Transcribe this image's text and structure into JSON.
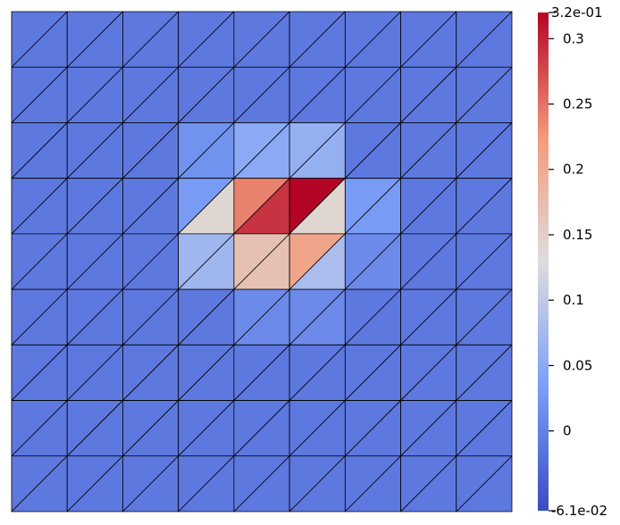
{
  "chart_data": {
    "type": "heatmap",
    "mesh": {
      "rows": 9,
      "cols": 9,
      "cell_split": "diagonal-bottom-left-to-top-right",
      "edge_color": "#000000",
      "triangles_note_order": "row index 0 = top, col index 0 = left; each cell has upper-left and lower-right triangle",
      "values": [
        [
          [
            -0.01,
            -0.01
          ],
          [
            -0.01,
            -0.01
          ],
          [
            -0.01,
            -0.01
          ],
          [
            -0.01,
            -0.01
          ],
          [
            -0.01,
            -0.01
          ],
          [
            -0.01,
            -0.01
          ],
          [
            -0.01,
            -0.01
          ],
          [
            -0.01,
            -0.01
          ],
          [
            -0.01,
            -0.01
          ]
        ],
        [
          [
            -0.01,
            -0.01
          ],
          [
            -0.01,
            -0.01
          ],
          [
            -0.01,
            -0.01
          ],
          [
            -0.01,
            -0.01
          ],
          [
            -0.01,
            -0.01
          ],
          [
            -0.01,
            -0.01
          ],
          [
            -0.01,
            -0.01
          ],
          [
            -0.01,
            -0.01
          ],
          [
            -0.01,
            -0.01
          ]
        ],
        [
          [
            -0.01,
            -0.01
          ],
          [
            -0.01,
            -0.01
          ],
          [
            -0.01,
            -0.01
          ],
          [
            0.02,
            0.02
          ],
          [
            0.05,
            0.05
          ],
          [
            0.06,
            0.06
          ],
          [
            -0.01,
            -0.01
          ],
          [
            -0.01,
            -0.01
          ],
          [
            -0.01,
            -0.01
          ]
        ],
        [
          [
            -0.01,
            -0.01
          ],
          [
            -0.01,
            -0.01
          ],
          [
            -0.01,
            -0.01
          ],
          [
            0.03,
            0.14
          ],
          [
            0.24,
            0.29
          ],
          [
            0.32,
            0.14
          ],
          [
            0.03,
            0.03
          ],
          [
            -0.01,
            -0.01
          ],
          [
            -0.01,
            -0.01
          ]
        ],
        [
          [
            -0.01,
            -0.01
          ],
          [
            -0.01,
            -0.01
          ],
          [
            -0.01,
            -0.01
          ],
          [
            0.07,
            0.07
          ],
          [
            0.17,
            0.17
          ],
          [
            0.21,
            0.08
          ],
          [
            0.01,
            0.01
          ],
          [
            -0.01,
            -0.01
          ],
          [
            -0.01,
            -0.01
          ]
        ],
        [
          [
            -0.01,
            -0.01
          ],
          [
            -0.01,
            -0.01
          ],
          [
            -0.01,
            -0.01
          ],
          [
            -0.01,
            -0.01
          ],
          [
            0.01,
            0.01
          ],
          [
            0.01,
            0.01
          ],
          [
            -0.01,
            -0.01
          ],
          [
            -0.01,
            -0.01
          ],
          [
            -0.01,
            -0.01
          ]
        ],
        [
          [
            -0.01,
            -0.01
          ],
          [
            -0.01,
            -0.01
          ],
          [
            -0.01,
            -0.01
          ],
          [
            -0.01,
            -0.01
          ],
          [
            -0.01,
            -0.01
          ],
          [
            -0.01,
            -0.01
          ],
          [
            -0.01,
            -0.01
          ],
          [
            -0.01,
            -0.01
          ],
          [
            -0.01,
            -0.01
          ]
        ],
        [
          [
            -0.01,
            -0.01
          ],
          [
            -0.01,
            -0.01
          ],
          [
            -0.01,
            -0.01
          ],
          [
            -0.01,
            -0.01
          ],
          [
            -0.01,
            -0.01
          ],
          [
            -0.01,
            -0.01
          ],
          [
            -0.01,
            -0.01
          ],
          [
            -0.01,
            -0.01
          ],
          [
            -0.01,
            -0.01
          ]
        ],
        [
          [
            -0.01,
            -0.01
          ],
          [
            -0.01,
            -0.01
          ],
          [
            -0.01,
            -0.01
          ],
          [
            -0.01,
            -0.01
          ],
          [
            -0.01,
            -0.01
          ],
          [
            -0.01,
            -0.01
          ],
          [
            -0.01,
            -0.01
          ],
          [
            -0.01,
            -0.01
          ],
          [
            -0.01,
            -0.01
          ]
        ]
      ]
    },
    "colorbar": {
      "min": -0.061,
      "max": 0.32,
      "min_label": "-6.1e-02",
      "max_label": "3.2e-01",
      "ticks": [
        {
          "value": 0.3,
          "label": "0.3"
        },
        {
          "value": 0.25,
          "label": "0.25"
        },
        {
          "value": 0.2,
          "label": "0.2"
        },
        {
          "value": 0.15,
          "label": "0.15"
        },
        {
          "value": 0.1,
          "label": "0.1"
        },
        {
          "value": 0.05,
          "label": "0.05"
        },
        {
          "value": 0,
          "label": "0"
        }
      ],
      "colormap": "cool-to-warm",
      "colormap_stops": [
        {
          "t": 0.0,
          "color": "#3b4cc0"
        },
        {
          "t": 0.25,
          "color": "#7b9ff9"
        },
        {
          "t": 0.5,
          "color": "#dddddd"
        },
        {
          "t": 0.75,
          "color": "#f39a7b"
        },
        {
          "t": 1.0,
          "color": "#b40426"
        }
      ],
      "placement": "right"
    }
  }
}
